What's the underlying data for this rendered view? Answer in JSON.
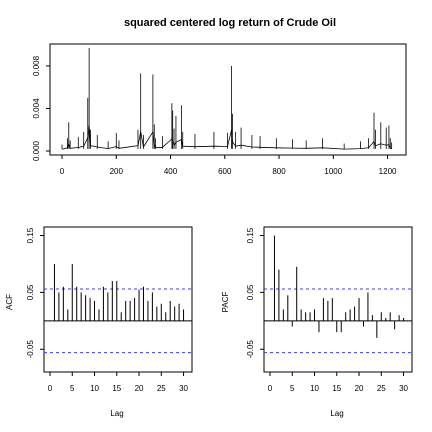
{
  "chart_data": [
    {
      "type": "line",
      "title": "squared centered log return of Crude Oil",
      "xlabel": "",
      "ylabel": "",
      "xlim": [
        0,
        1220
      ],
      "ylim": [
        0,
        0.0095
      ],
      "xticks": [
        0,
        200,
        400,
        600,
        800,
        1000,
        1200
      ],
      "yticks": [
        0.0,
        0.004,
        0.008
      ],
      "ytick_labels": [
        "0.000",
        "0.004",
        "0.008"
      ],
      "x": [
        0,
        20,
        25,
        30,
        60,
        80,
        95,
        100,
        105,
        130,
        170,
        200,
        210,
        280,
        290,
        300,
        335,
        340,
        345,
        370,
        405,
        408,
        413,
        420,
        440,
        445,
        490,
        560,
        610,
        625,
        628,
        640,
        660,
        700,
        730,
        790,
        850,
        900,
        960,
        1040,
        1100,
        1130,
        1150,
        1155,
        1175,
        1195,
        1205,
        1210,
        1215
      ],
      "y": [
        0.0006,
        0.0012,
        0.0027,
        0.001,
        0.0013,
        0.0018,
        0.005,
        0.0097,
        0.002,
        0.0015,
        0.0009,
        0.0017,
        0.001,
        0.002,
        0.0073,
        0.0015,
        0.0072,
        0.0025,
        0.0012,
        0.0014,
        0.0045,
        0.0038,
        0.0021,
        0.0033,
        0.0043,
        0.0018,
        0.0016,
        0.0018,
        0.0017,
        0.008,
        0.0035,
        0.0018,
        0.0022,
        0.0015,
        0.0014,
        0.0012,
        0.0011,
        0.001,
        0.0012,
        0.0007,
        0.0009,
        0.0012,
        0.0036,
        0.002,
        0.0027,
        0.0022,
        0.0024,
        0.0012,
        0.0008
      ]
    },
    {
      "type": "bar",
      "title": "",
      "xlabel": "Lag",
      "ylabel": "ACF",
      "xlim": [
        0,
        31
      ],
      "ylim": [
        -0.09,
        0.165
      ],
      "xticks": [
        0,
        5,
        10,
        15,
        20,
        25,
        30
      ],
      "yticks": [
        -0.05,
        0.05,
        0.15
      ],
      "ytick_labels": [
        "-0.05",
        "0.05",
        "0.15"
      ],
      "conf_limit": 0.056,
      "lags": [
        1,
        2,
        3,
        4,
        5,
        6,
        7,
        8,
        9,
        10,
        11,
        12,
        13,
        14,
        15,
        16,
        17,
        18,
        19,
        20,
        21,
        22,
        23,
        24,
        25,
        26,
        27,
        28,
        29,
        30
      ],
      "values": [
        0.1,
        0.05,
        0.06,
        0.02,
        0.1,
        0.06,
        0.05,
        0.045,
        0.04,
        0.035,
        0.02,
        0.06,
        0.05,
        0.07,
        0.07,
        0.015,
        0.035,
        0.035,
        0.04,
        0.055,
        0.06,
        0.035,
        0.05,
        0.025,
        0.03,
        0.015,
        0.035,
        0.025,
        0.03,
        0.02
      ]
    },
    {
      "type": "bar",
      "title": "",
      "xlabel": "Lag",
      "ylabel": "PACF",
      "xlim": [
        0,
        31
      ],
      "ylim": [
        -0.09,
        0.165
      ],
      "xticks": [
        0,
        5,
        10,
        15,
        20,
        25,
        30
      ],
      "yticks": [
        -0.05,
        0.05,
        0.15
      ],
      "ytick_labels": [
        "-0.05",
        "0.05",
        "0.15"
      ],
      "conf_limit": 0.056,
      "lags": [
        1,
        2,
        3,
        4,
        5,
        6,
        7,
        8,
        9,
        10,
        11,
        12,
        13,
        14,
        15,
        16,
        17,
        18,
        19,
        20,
        21,
        22,
        23,
        24,
        25,
        26,
        27,
        28,
        29,
        30
      ],
      "values": [
        0.15,
        0.09,
        0.02,
        0.045,
        -0.01,
        0.095,
        0.02,
        0.015,
        0.015,
        0.02,
        -0.02,
        0.04,
        0.035,
        0.04,
        -0.02,
        -0.02,
        0.015,
        0.02,
        0.025,
        0.04,
        -0.01,
        0.05,
        0.01,
        -0.03,
        0.015,
        0.005,
        0.015,
        -0.015,
        0.01,
        0.005
      ]
    }
  ]
}
